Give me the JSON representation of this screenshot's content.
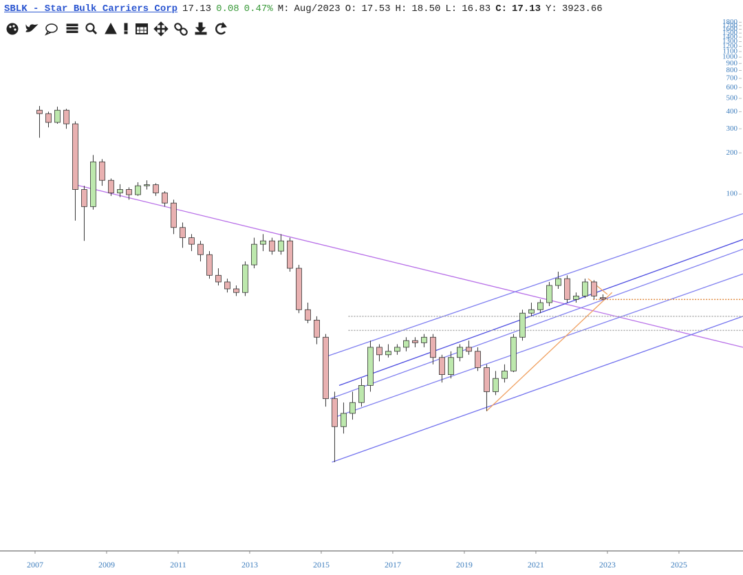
{
  "header": {
    "ticker_link": "SBLK - Star Bulk Carriers Corp",
    "last": "17.13",
    "change": "0.08",
    "change_pct": "0.47%",
    "period_label": "M:",
    "period": "Aug/2023",
    "open_label": "O:",
    "open": "17.53",
    "high_label": "H:",
    "high": "18.50",
    "low_label": "L:",
    "low": "16.83",
    "close_label": "C:",
    "close": "17.13",
    "y_label": "Y:",
    "y_value": "3923.66"
  },
  "chart_data": {
    "type": "candlestick",
    "yscale": "log",
    "xlim": [
      2006.02,
      2026.79
    ],
    "xticks": [
      2007,
      2009,
      2011,
      2013,
      2015,
      2017,
      2019,
      2021,
      2023,
      2025
    ],
    "ylim": [
      0.25,
      1850
    ],
    "yticks": [
      100,
      200,
      300,
      400,
      500,
      600,
      700,
      800,
      900,
      1000,
      1100,
      1200,
      1300,
      1400,
      1500,
      1600,
      1700,
      1800
    ],
    "up_color": "#bde8ad",
    "down_color": "#e9b1b1",
    "x": [
      2007.125,
      2007.375,
      2007.625,
      2007.875,
      2008.125,
      2008.375,
      2008.625,
      2008.875,
      2009.125,
      2009.375,
      2009.625,
      2009.875,
      2010.125,
      2010.375,
      2010.625,
      2010.875,
      2011.125,
      2011.375,
      2011.625,
      2011.875,
      2012.125,
      2012.375,
      2012.625,
      2012.875,
      2013.125,
      2013.375,
      2013.625,
      2013.875,
      2014.125,
      2014.375,
      2014.625,
      2014.875,
      2015.125,
      2015.375,
      2015.625,
      2015.875,
      2016.125,
      2016.375,
      2016.625,
      2016.875,
      2017.125,
      2017.375,
      2017.625,
      2017.875,
      2018.125,
      2018.375,
      2018.625,
      2018.875,
      2019.125,
      2019.375,
      2019.625,
      2019.875,
      2020.125,
      2020.375,
      2020.625,
      2020.875,
      2021.125,
      2021.375,
      2021.625,
      2021.875,
      2022.125,
      2022.375,
      2022.625,
      2022.875
    ],
    "ohlc": [
      [
        410,
        440,
        258,
        387
      ],
      [
        387,
        400,
        307,
        334
      ],
      [
        334,
        435,
        326,
        410
      ],
      [
        410,
        420,
        300,
        326
      ],
      [
        326,
        340,
        64,
        108
      ],
      [
        108,
        115,
        45.5,
        81
      ],
      [
        81,
        193,
        77,
        172
      ],
      [
        172,
        180,
        115,
        126
      ],
      [
        126,
        130,
        97,
        102
      ],
      [
        102,
        118,
        95,
        108
      ],
      [
        108,
        112,
        91,
        99
      ],
      [
        99,
        122,
        97,
        115
      ],
      [
        115,
        126,
        108,
        117
      ],
      [
        117,
        120,
        97,
        102
      ],
      [
        102,
        105,
        81,
        86
      ],
      [
        86,
        91,
        51,
        57
      ],
      [
        57,
        62,
        40.5,
        48
      ],
      [
        48,
        51,
        38.3,
        43
      ],
      [
        43,
        45.5,
        32.2,
        36.1
      ],
      [
        36.1,
        38.3,
        24.1,
        25.5
      ],
      [
        25.5,
        28.7,
        21.5,
        22.8
      ],
      [
        22.8,
        24.1,
        19.1,
        20.3
      ],
      [
        20.3,
        21.5,
        18.0,
        19.1
      ],
      [
        19.1,
        32.2,
        18.0,
        30.4
      ],
      [
        30.4,
        48,
        28.7,
        43
      ],
      [
        43,
        51,
        38.3,
        45.5
      ],
      [
        45.5,
        48,
        36.1,
        38.3
      ],
      [
        38.3,
        51,
        36.1,
        45.5
      ],
      [
        45.5,
        48,
        27.1,
        28.7
      ],
      [
        28.7,
        30.4,
        13.5,
        14.3
      ],
      [
        14.3,
        16.1,
        11.4,
        12.0
      ],
      [
        12.0,
        12.8,
        8.0,
        9.0
      ],
      [
        9.0,
        9.5,
        2.8,
        3.2
      ],
      [
        3.2,
        3.6,
        1.1,
        2.0
      ],
      [
        2.0,
        3.0,
        1.78,
        2.5
      ],
      [
        2.5,
        3.6,
        2.25,
        3.0
      ],
      [
        3.0,
        4.5,
        2.8,
        4.0
      ],
      [
        4.0,
        8.5,
        3.6,
        7.6
      ],
      [
        7.6,
        8.0,
        6.0,
        6.7
      ],
      [
        6.7,
        8.0,
        6.4,
        7.1
      ],
      [
        7.1,
        8.0,
        6.7,
        7.6
      ],
      [
        7.6,
        9.0,
        7.1,
        8.5
      ],
      [
        8.5,
        9.0,
        7.6,
        8.2
      ],
      [
        8.2,
        9.5,
        7.6,
        9.0
      ],
      [
        9.0,
        9.5,
        5.7,
        6.4
      ],
      [
        6.4,
        6.7,
        4.2,
        4.8
      ],
      [
        4.8,
        7.1,
        4.5,
        6.4
      ],
      [
        6.4,
        8.0,
        6.0,
        7.6
      ],
      [
        7.6,
        8.5,
        6.7,
        7.1
      ],
      [
        7.1,
        7.6,
        5.1,
        5.4
      ],
      [
        5.4,
        5.7,
        2.6,
        3.6
      ],
      [
        3.6,
        5.1,
        3.4,
        4.5
      ],
      [
        4.5,
        5.7,
        4.2,
        5.1
      ],
      [
        5.1,
        9.5,
        5.0,
        9.0
      ],
      [
        9.0,
        14.3,
        8.5,
        13.5
      ],
      [
        13.5,
        16.1,
        12.8,
        14.3
      ],
      [
        14.3,
        17.0,
        13.5,
        16.1
      ],
      [
        16.1,
        22.8,
        15.2,
        21.5
      ],
      [
        21.5,
        27.1,
        20.3,
        24.1
      ],
      [
        24.1,
        25.5,
        16.1,
        17.0
      ],
      [
        17.0,
        19.1,
        16.1,
        18.0
      ],
      [
        18.0,
        24.1,
        17.4,
        22.8
      ],
      [
        22.8,
        23.5,
        17.0,
        18.0
      ],
      [
        17.53,
        18.5,
        16.83,
        17.13
      ]
    ],
    "trendlines": [
      {
        "color": "#b870e8",
        "x": [
          2008.13,
          2026.79
        ],
        "y": [
          117,
          7.6
        ]
      },
      {
        "color": "#7d7df0",
        "x": [
          2015.06,
          2026.79
        ],
        "y": [
          6.4,
          72
        ]
      },
      {
        "color": "#4a4ae0",
        "x": [
          2015.5,
          2026.79
        ],
        "y": [
          4.0,
          46.6
        ]
      },
      {
        "color": "#8080f0",
        "x": [
          2015.25,
          2026.79
        ],
        "y": [
          3.2,
          39.6
        ]
      },
      {
        "color": "#8080f0",
        "x": [
          2015.45,
          2026.79
        ],
        "y": [
          2.38,
          26.1
        ]
      },
      {
        "color": "#7070ee",
        "x": [
          2015.3,
          2026.79
        ],
        "y": [
          1.1,
          12.8
        ]
      },
      {
        "color": "#f0a060",
        "x": [
          2019.62,
          2023.13
        ],
        "y": [
          2.6,
          19.1
        ]
      },
      {
        "color": "#f0a060",
        "x": [
          2022.46,
          2023.0
        ],
        "y": [
          24.1,
          18.5
        ]
      }
    ],
    "hlines": [
      {
        "value": 17.0,
        "x_start": 2022.6,
        "color": "#e08a40"
      },
      {
        "value": 12.8,
        "x_start": 2015.76,
        "color": "#aaaaaa"
      },
      {
        "value": 10.1,
        "x_start": 2015.76,
        "color": "#aaaaaa"
      }
    ]
  }
}
